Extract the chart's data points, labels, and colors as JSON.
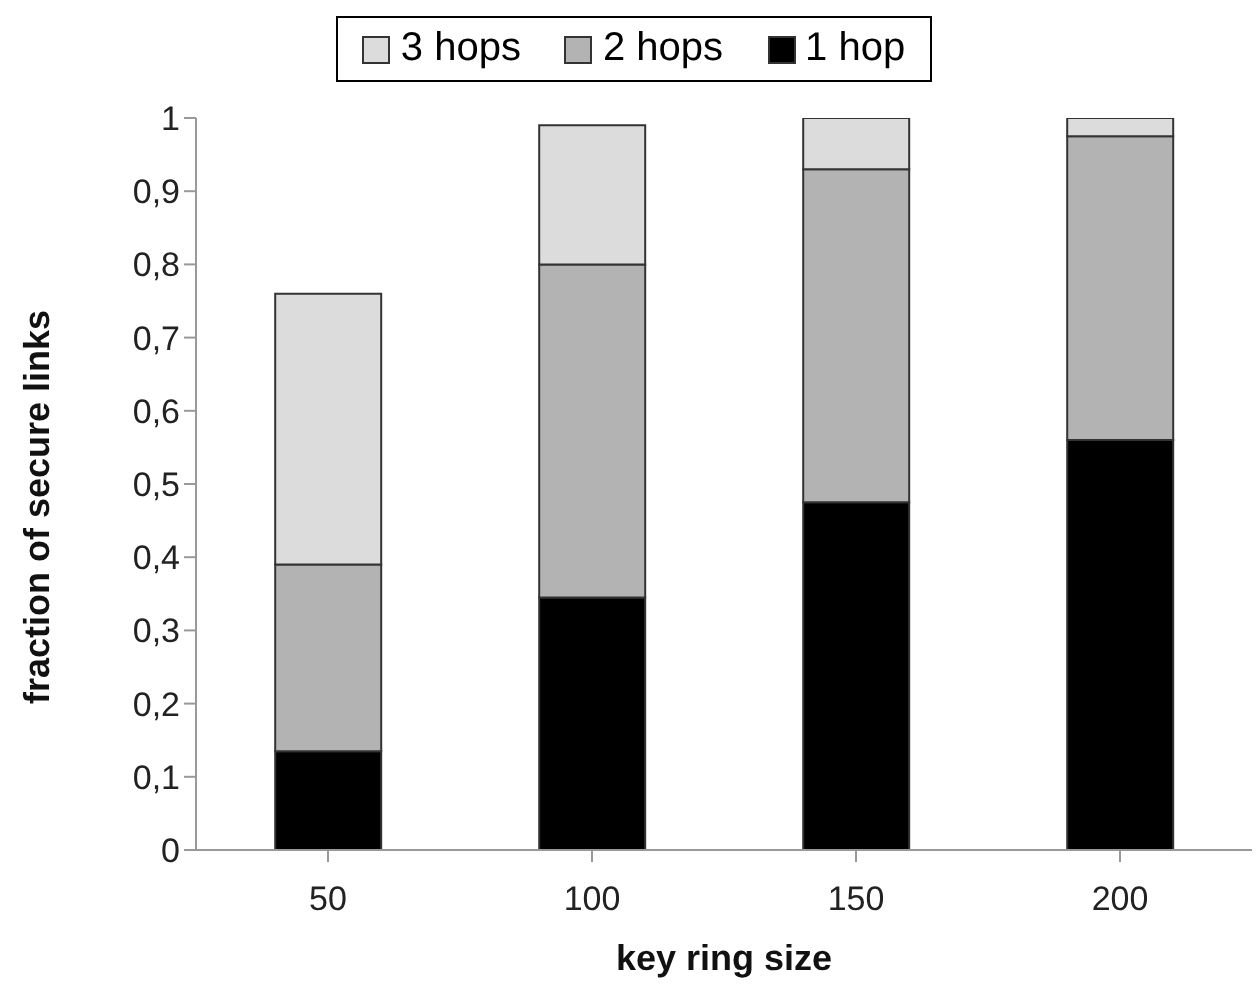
{
  "chart_data": {
    "type": "bar",
    "xlabel": "key ring size",
    "ylabel": "fraction of secure links",
    "categories": [
      "50",
      "100",
      "150",
      "200"
    ],
    "stacked": true,
    "legend": "top",
    "grid": false,
    "ylim": [
      0,
      1
    ],
    "yticks": [
      0,
      {
        "value": 0.1,
        "label": "0,1"
      },
      {
        "value": 0.2,
        "label": "0,2"
      },
      {
        "value": 0.3,
        "label": "0,3"
      },
      {
        "value": 0.4,
        "label": "0,4"
      },
      {
        "value": 0.5,
        "label": "0,5"
      },
      {
        "value": 0.6,
        "label": "0,6"
      },
      {
        "value": 0.7,
        "label": "0,7"
      },
      {
        "value": 0.8,
        "label": "0,8"
      },
      {
        "value": 0.9,
        "label": "0,9"
      },
      1
    ],
    "series": [
      {
        "name": "1 hop",
        "color": "#000000",
        "values": [
          0.135,
          0.345,
          0.475,
          0.56
        ]
      },
      {
        "name": "2 hops",
        "color": "#b3b3b3",
        "values": [
          0.255,
          0.455,
          0.455,
          0.415
        ]
      },
      {
        "name": "3 hops",
        "color": "#dcdcdc",
        "values": [
          0.37,
          0.19,
          0.07,
          0.025
        ]
      }
    ]
  }
}
